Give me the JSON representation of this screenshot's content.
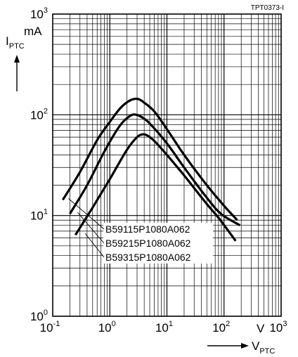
{
  "chart_data": {
    "type": "line",
    "code": "TPT0373-I",
    "x_scale": "log",
    "y_scale": "log",
    "xlim": [
      0.1,
      1000
    ],
    "ylim": [
      1,
      1000
    ],
    "grid": true,
    "x_ticks": [
      {
        "base": "10",
        "exp": "-1"
      },
      {
        "base": "10",
        "exp": "0"
      },
      {
        "base": "10",
        "exp": "1"
      },
      {
        "base": "10",
        "exp": "2"
      },
      {
        "base": "10",
        "exp": "3"
      }
    ],
    "y_ticks": [
      {
        "base": "10",
        "exp": "0"
      },
      {
        "base": "10",
        "exp": "1"
      },
      {
        "base": "10",
        "exp": "2"
      },
      {
        "base": "10",
        "exp": "3"
      }
    ],
    "ylabel": {
      "symbol": "I",
      "sub": "PTC",
      "unit": "mA"
    },
    "xlabel": {
      "symbol": "V",
      "sub": "PTC",
      "unit": "V"
    },
    "series": [
      {
        "name": "B59115P1080A062",
        "points": [
          [
            0.15,
            14.3
          ],
          [
            0.3,
            27
          ],
          [
            0.6,
            56
          ],
          [
            1,
            85
          ],
          [
            1.5,
            115
          ],
          [
            2,
            133
          ],
          [
            2.6,
            143
          ],
          [
            3.2,
            143
          ],
          [
            4,
            132
          ],
          [
            6,
            108
          ],
          [
            10,
            72
          ],
          [
            20,
            40
          ],
          [
            50,
            20
          ],
          [
            100,
            12.5
          ],
          [
            170,
            9
          ]
        ]
      },
      {
        "name": "B59215P1080A062",
        "points": [
          [
            0.2,
            10.4
          ],
          [
            0.4,
            20
          ],
          [
            0.8,
            43
          ],
          [
            1.5,
            78
          ],
          [
            2.3,
            98
          ],
          [
            2.9,
            100
          ],
          [
            3.6,
            95
          ],
          [
            5,
            82
          ],
          [
            10,
            52
          ],
          [
            20,
            30
          ],
          [
            50,
            15
          ],
          [
            90,
            10.3
          ],
          [
            190,
            8
          ]
        ]
      },
      {
        "name": "B59315P1080A062",
        "points": [
          [
            0.25,
            6.4
          ],
          [
            0.5,
            12
          ],
          [
            1,
            23
          ],
          [
            2,
            45
          ],
          [
            3,
            60
          ],
          [
            3.8,
            64
          ],
          [
            4.6,
            62
          ],
          [
            6,
            55
          ],
          [
            10,
            40
          ],
          [
            20,
            25
          ],
          [
            50,
            13
          ],
          [
            80,
            9.5
          ],
          [
            160,
            5.6
          ]
        ]
      }
    ],
    "legend": {
      "placement": "bottom-center",
      "labels": [
        "B59115P1080A062",
        "B59215P1080A062",
        "B59315P1080A062"
      ]
    },
    "annotations": [
      {
        "text": "V",
        "role": "x-unit"
      },
      {
        "text": "mA",
        "role": "y-unit"
      }
    ]
  }
}
